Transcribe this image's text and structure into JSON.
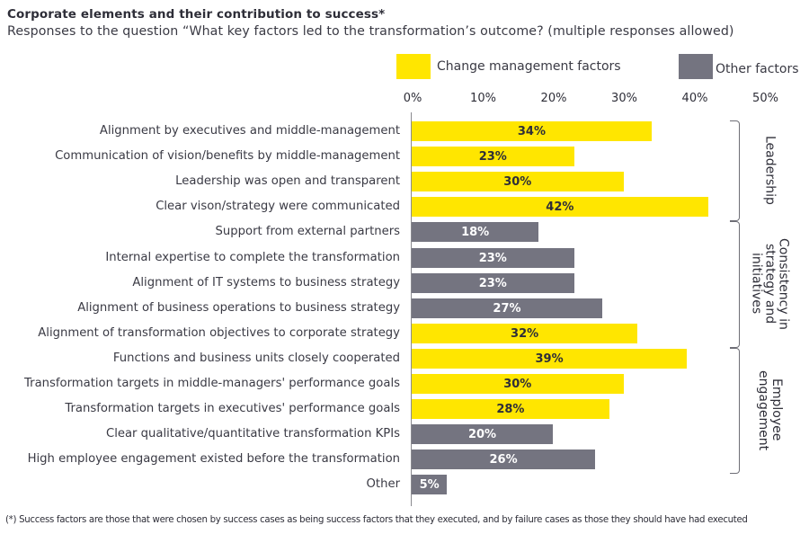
{
  "colors": {
    "change_management": "#ffe600",
    "other": "#747480",
    "label_on_yellow": "#2e2e38",
    "label_on_gray": "#ffffff"
  },
  "chart_data": {
    "type": "bar",
    "orientation": "horizontal",
    "title": "Corporate elements and their contribution to success*",
    "subtitle": "Responses to the question “What key factors led to the transformation’s outcome? (multiple responses allowed)",
    "xlabel": "",
    "ylabel": "",
    "xlim": [
      0,
      50
    ],
    "x_ticks": [
      "0%",
      "10%",
      "20%",
      "30%",
      "40%",
      "50%"
    ],
    "x_tick_values": [
      0,
      10,
      20,
      30,
      40,
      50
    ],
    "grid": false,
    "legend_position": "top",
    "legend": [
      {
        "key": "change",
        "label": "Change management factors"
      },
      {
        "key": "other",
        "label": "Other factors"
      }
    ],
    "categories": [
      "Alignment by executives and middle-management",
      "Communication of vision/benefits by middle-management",
      "Leadership was open and transparent",
      "Clear vison/strategy were communicated",
      "Support from external partners",
      "Internal expertise to complete the transformation",
      "Alignment of IT systems to business strategy",
      "Alignment of business operations to business strategy",
      "Alignment of transformation objectives to corporate strategy",
      "Functions and business units closely cooperated",
      "Transformation targets in middle-managers' performance goals",
      "Transformation targets in executives' performance goals",
      "Clear qualitative/quantitative transformation KPIs",
      "High employee engagement existed before the transformation",
      "Other"
    ],
    "values": [
      34,
      23,
      30,
      42,
      18,
      23,
      23,
      27,
      32,
      39,
      30,
      28,
      20,
      26,
      5
    ],
    "value_labels": [
      "34%",
      "23%",
      "30%",
      "42%",
      "18%",
      "23%",
      "23%",
      "27%",
      "32%",
      "39%",
      "30%",
      "28%",
      "20%",
      "26%",
      "5%"
    ],
    "series_type": [
      "change",
      "change",
      "change",
      "change",
      "other",
      "other",
      "other",
      "other",
      "change",
      "change",
      "change",
      "change",
      "other",
      "other",
      "other"
    ],
    "groups": [
      {
        "label": "Leadership",
        "lines": [
          "Leadership"
        ],
        "first": 0,
        "last": 3
      },
      {
        "label": "Consistency in strategy and initiatives",
        "lines": [
          "Consistency in",
          "strategy and",
          "initiatives"
        ],
        "first": 4,
        "last": 8
      },
      {
        "label": "Employee engagement",
        "lines": [
          "Employee",
          "engagement"
        ],
        "first": 9,
        "last": 13
      }
    ],
    "footnote": "(*) Success factors are those that were chosen by success cases as being success factors that they executed, and by failure cases as those they should have had executed"
  }
}
